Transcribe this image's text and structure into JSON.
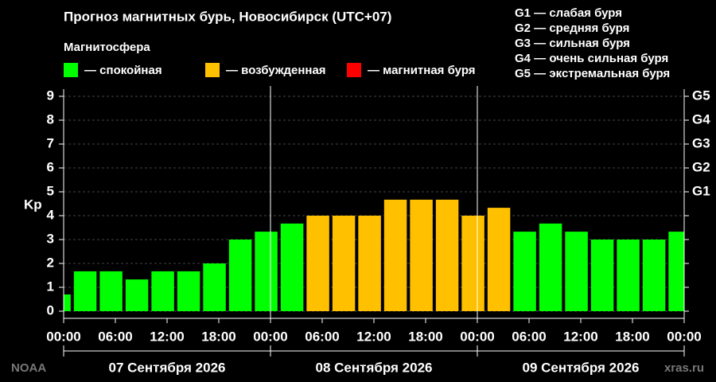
{
  "chart_data": {
    "type": "bar",
    "title": "Прогноз магнитных бурь, Новосибирск (UTC+07)",
    "legend_title": "Магнитосфера",
    "legend": [
      {
        "label": "— спокойная",
        "color": "#00ff00"
      },
      {
        "label": "— возбужденная",
        "color": "#ffc000"
      },
      {
        "label": "— магнитная буря",
        "color": "#ff0000"
      }
    ],
    "g_legend": [
      "G1 — слабая буря",
      "G2 — средняя буря",
      "G3 — сильная буря",
      "G4 — очень сильная буря",
      "G5 — экстремальная буря"
    ],
    "ylabel": "Kp",
    "x": [
      -2,
      1,
      4,
      7,
      10,
      13,
      16,
      19,
      22,
      25,
      28,
      31,
      34,
      37,
      40,
      43,
      46,
      49,
      52,
      55,
      58,
      61,
      64,
      67,
      70
    ],
    "values": [
      0.7,
      1.67,
      1.67,
      1.33,
      1.67,
      1.67,
      2,
      3,
      3.33,
      3.67,
      4,
      4,
      4,
      4.67,
      4.67,
      4.67,
      4,
      4.33,
      3.33,
      3.67,
      3.33,
      3,
      3,
      3,
      3.33
    ],
    "colors": [
      "#00ff00",
      "#00ff00",
      "#00ff00",
      "#00ff00",
      "#00ff00",
      "#00ff00",
      "#00ff00",
      "#00ff00",
      "#00ff00",
      "#00ff00",
      "#ffc000",
      "#ffc000",
      "#ffc000",
      "#ffc000",
      "#ffc000",
      "#ffc000",
      "#ffc000",
      "#ffc000",
      "#00ff00",
      "#00ff00",
      "#00ff00",
      "#00ff00",
      "#00ff00",
      "#00ff00",
      "#00ff00"
    ],
    "bar_hours": 3,
    "xlim": [
      0,
      72
    ],
    "xticks": [
      {
        "value": 0,
        "label": "00:00"
      },
      {
        "value": 6,
        "label": "06:00"
      },
      {
        "value": 12,
        "label": "12:00"
      },
      {
        "value": 18,
        "label": "18:00"
      },
      {
        "value": 24,
        "label": "00:00"
      },
      {
        "value": 30,
        "label": "06:00"
      },
      {
        "value": 36,
        "label": "12:00"
      },
      {
        "value": 42,
        "label": "18:00"
      },
      {
        "value": 48,
        "label": "00:00"
      },
      {
        "value": 54,
        "label": "06:00"
      },
      {
        "value": 60,
        "label": "12:00"
      },
      {
        "value": 66,
        "label": "18:00"
      },
      {
        "value": 72,
        "label": "00:00"
      }
    ],
    "day_labels": [
      "07 Сентября 2026",
      "08 Сентября 2026",
      "09 Сентября 2026"
    ],
    "ylim": [
      -0.3,
      9.3
    ],
    "yticks": [
      0,
      1,
      2,
      3,
      4,
      5,
      6,
      7,
      8,
      9
    ],
    "y2lim": [
      -0.3,
      9.3
    ],
    "y2ticks": [
      {
        "value": 5,
        "label": "G1"
      },
      {
        "value": 6,
        "label": "G2"
      },
      {
        "value": 7,
        "label": "G3"
      },
      {
        "value": 8,
        "label": "G4"
      },
      {
        "value": 9,
        "label": "G5"
      }
    ],
    "grid": true,
    "source_left": "NOAA",
    "source_right": "xras.ru"
  }
}
